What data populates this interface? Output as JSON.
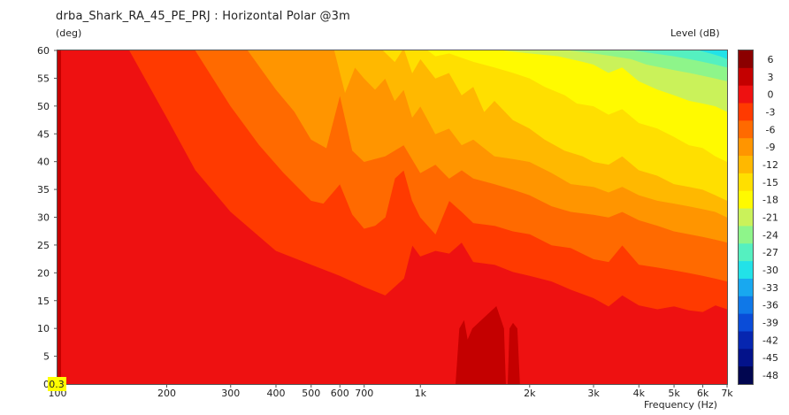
{
  "chart_data": {
    "type": "heatmap",
    "title": "drba_Shark_RA_45_PE_PRJ : Horizontal Polar @3m",
    "ylabel": "(deg)",
    "xlabel": "Frequency (Hz)",
    "colorbar_label": "Level (dB)",
    "x_scale": "log",
    "xlim": [
      100,
      7000
    ],
    "ylim": [
      0,
      60
    ],
    "x_ticks": [
      {
        "value": 100,
        "label": "100"
      },
      {
        "value": 200,
        "label": "200"
      },
      {
        "value": 300,
        "label": "300"
      },
      {
        "value": 400,
        "label": "400"
      },
      {
        "value": 500,
        "label": "500"
      },
      {
        "value": 600,
        "label": "600"
      },
      {
        "value": 700,
        "label": "700"
      },
      {
        "value": 1000,
        "label": "1k"
      },
      {
        "value": 2000,
        "label": "2k"
      },
      {
        "value": 3000,
        "label": "3k"
      },
      {
        "value": 4000,
        "label": "4k"
      },
      {
        "value": 5000,
        "label": "5k"
      },
      {
        "value": 6000,
        "label": "6k"
      },
      {
        "value": 7000,
        "label": "7k"
      }
    ],
    "y_ticks": [
      "0",
      "5",
      "10",
      "15",
      "20",
      "25",
      "30",
      "35",
      "40",
      "45",
      "50",
      "55",
      "60"
    ],
    "cursor_readout": "0.3",
    "colorbar": [
      {
        "level": "6",
        "color": "#8b0000"
      },
      {
        "level": "3",
        "color": "#c40000"
      },
      {
        "level": "0",
        "color": "#ee1111"
      },
      {
        "level": "-3",
        "color": "#ff3a00"
      },
      {
        "level": "-6",
        "color": "#ff6a00"
      },
      {
        "level": "-9",
        "color": "#ff9500"
      },
      {
        "level": "-12",
        "color": "#ffb800"
      },
      {
        "level": "-15",
        "color": "#ffdf00"
      },
      {
        "level": "-18",
        "color": "#fffa00"
      },
      {
        "level": "-21",
        "color": "#caf25a"
      },
      {
        "level": "-24",
        "color": "#8ef58a"
      },
      {
        "level": "-27",
        "color": "#55f0c0"
      },
      {
        "level": "-30",
        "color": "#22e2e8"
      },
      {
        "level": "-33",
        "color": "#18a8f0"
      },
      {
        "level": "-36",
        "color": "#0f78e8"
      },
      {
        "level": "-39",
        "color": "#0a4cd8"
      },
      {
        "level": "-42",
        "color": "#0626b0"
      },
      {
        "level": "-45",
        "color": "#03128a"
      },
      {
        "level": "-48",
        "color": "#010650"
      }
    ],
    "contours": [
      {
        "level": "-3",
        "color": "#ff3a00",
        "boundary": [
          [
            158,
            60
          ],
          [
            200,
            48
          ],
          [
            240,
            38.5
          ],
          [
            300,
            31
          ],
          [
            400,
            24
          ],
          [
            500,
            21.5
          ],
          [
            600,
            19.5
          ],
          [
            700,
            17.5
          ],
          [
            800,
            16
          ],
          [
            900,
            19
          ],
          [
            950,
            25
          ],
          [
            1000,
            23
          ],
          [
            1100,
            24
          ],
          [
            1200,
            23.5
          ],
          [
            1300,
            25.5
          ],
          [
            1400,
            22
          ],
          [
            1600,
            21.5
          ],
          [
            1800,
            20.2
          ],
          [
            2000,
            19.5
          ],
          [
            2300,
            18.5
          ],
          [
            2600,
            17
          ],
          [
            3000,
            15.5
          ],
          [
            3300,
            14
          ],
          [
            3600,
            16
          ],
          [
            4000,
            14.2
          ],
          [
            4500,
            13.5
          ],
          [
            5000,
            14
          ],
          [
            5500,
            13.3
          ],
          [
            6000,
            13
          ],
          [
            6500,
            14.2
          ],
          [
            7000,
            13.5
          ]
        ]
      },
      {
        "level": "-6",
        "color": "#ff6a00",
        "boundary": [
          [
            240,
            60
          ],
          [
            300,
            50
          ],
          [
            360,
            43
          ],
          [
            420,
            38
          ],
          [
            500,
            33
          ],
          [
            540,
            32.5
          ],
          [
            600,
            36
          ],
          [
            650,
            30.5
          ],
          [
            700,
            28
          ],
          [
            750,
            28.5
          ],
          [
            800,
            30
          ],
          [
            850,
            37
          ],
          [
            900,
            38.5
          ],
          [
            950,
            33
          ],
          [
            1000,
            30
          ],
          [
            1100,
            27
          ],
          [
            1200,
            33
          ],
          [
            1300,
            31
          ],
          [
            1400,
            29
          ],
          [
            1600,
            28.5
          ],
          [
            1800,
            27.5
          ],
          [
            2000,
            27
          ],
          [
            2300,
            25
          ],
          [
            2600,
            24.5
          ],
          [
            3000,
            22.5
          ],
          [
            3300,
            22
          ],
          [
            3600,
            25
          ],
          [
            4000,
            21.5
          ],
          [
            4500,
            21
          ],
          [
            5000,
            20.5
          ],
          [
            5500,
            20
          ],
          [
            6000,
            19.5
          ],
          [
            6500,
            19
          ],
          [
            7000,
            18.5
          ]
        ]
      },
      {
        "level": "-9",
        "color": "#ff9500",
        "boundary": [
          [
            335,
            60
          ],
          [
            400,
            53
          ],
          [
            450,
            49
          ],
          [
            500,
            44
          ],
          [
            550,
            42.5
          ],
          [
            600,
            52
          ],
          [
            650,
            42
          ],
          [
            700,
            40
          ],
          [
            800,
            41
          ],
          [
            900,
            43
          ],
          [
            1000,
            38
          ],
          [
            1100,
            39.5
          ],
          [
            1200,
            37
          ],
          [
            1300,
            38.5
          ],
          [
            1400,
            37
          ],
          [
            1600,
            36
          ],
          [
            1800,
            35
          ],
          [
            2000,
            34
          ],
          [
            2300,
            32
          ],
          [
            2600,
            31
          ],
          [
            3000,
            30.5
          ],
          [
            3300,
            30
          ],
          [
            3600,
            31
          ],
          [
            4000,
            29.5
          ],
          [
            4500,
            28.5
          ],
          [
            5000,
            27.5
          ],
          [
            5500,
            27
          ],
          [
            6000,
            26.5
          ],
          [
            6500,
            26
          ],
          [
            7000,
            25.5
          ]
        ]
      },
      {
        "level": "-12",
        "color": "#ffb800",
        "boundary": [
          [
            580,
            60
          ],
          [
            620,
            52.5
          ],
          [
            660,
            57
          ],
          [
            700,
            55
          ],
          [
            750,
            53
          ],
          [
            800,
            55
          ],
          [
            850,
            51
          ],
          [
            900,
            53
          ],
          [
            950,
            48
          ],
          [
            1000,
            50
          ],
          [
            1100,
            45
          ],
          [
            1200,
            46
          ],
          [
            1300,
            43
          ],
          [
            1400,
            44
          ],
          [
            1600,
            41
          ],
          [
            1800,
            40.5
          ],
          [
            2000,
            40
          ],
          [
            2300,
            38
          ],
          [
            2600,
            36
          ],
          [
            3000,
            35.5
          ],
          [
            3300,
            34.5
          ],
          [
            3600,
            35.5
          ],
          [
            4000,
            34
          ],
          [
            4500,
            33
          ],
          [
            5000,
            32.5
          ],
          [
            5500,
            32
          ],
          [
            6000,
            31.5
          ],
          [
            6500,
            31
          ],
          [
            7000,
            30
          ]
        ]
      },
      {
        "level": "-15",
        "color": "#ffdf00",
        "boundary": [
          [
            790,
            60
          ],
          [
            850,
            58
          ],
          [
            900,
            60.5
          ],
          [
            950,
            56
          ],
          [
            1000,
            58.5
          ],
          [
            1100,
            55
          ],
          [
            1200,
            56
          ],
          [
            1300,
            52
          ],
          [
            1400,
            53.5
          ],
          [
            1500,
            49
          ],
          [
            1600,
            51
          ],
          [
            1800,
            47.5
          ],
          [
            2000,
            46
          ],
          [
            2200,
            44
          ],
          [
            2500,
            42
          ],
          [
            2800,
            41
          ],
          [
            3000,
            40
          ],
          [
            3300,
            39.5
          ],
          [
            3600,
            41
          ],
          [
            4000,
            38.5
          ],
          [
            4500,
            37.5
          ],
          [
            5000,
            36
          ],
          [
            5500,
            35.5
          ],
          [
            6000,
            35
          ],
          [
            6500,
            34
          ],
          [
            7000,
            33
          ]
        ]
      },
      {
        "level": "-18",
        "color": "#fffa00",
        "boundary": [
          [
            1050,
            60
          ],
          [
            1100,
            59
          ],
          [
            1200,
            59.5
          ],
          [
            1400,
            58
          ],
          [
            1600,
            57
          ],
          [
            1800,
            56
          ],
          [
            2000,
            55
          ],
          [
            2200,
            53.5
          ],
          [
            2500,
            52
          ],
          [
            2700,
            50.5
          ],
          [
            3000,
            50
          ],
          [
            3300,
            48.5
          ],
          [
            3600,
            49.5
          ],
          [
            4000,
            47
          ],
          [
            4500,
            46
          ],
          [
            5000,
            44.5
          ],
          [
            5500,
            43
          ],
          [
            6000,
            42.5
          ],
          [
            6500,
            41
          ],
          [
            7000,
            40
          ]
        ]
      },
      {
        "level": "-21",
        "color": "#caf25a",
        "boundary": [
          [
            1700,
            60
          ],
          [
            2000,
            59.5
          ],
          [
            2400,
            59
          ],
          [
            2800,
            58
          ],
          [
            3000,
            57.5
          ],
          [
            3300,
            56
          ],
          [
            3600,
            57
          ],
          [
            4000,
            54.5
          ],
          [
            4500,
            53
          ],
          [
            5000,
            52
          ],
          [
            5500,
            51
          ],
          [
            6000,
            50.5
          ],
          [
            6500,
            50
          ],
          [
            7000,
            49
          ]
        ]
      },
      {
        "level": "-24",
        "color": "#8ef58a",
        "boundary": [
          [
            2600,
            60
          ],
          [
            3000,
            59.5
          ],
          [
            3400,
            59
          ],
          [
            3800,
            58.5
          ],
          [
            4200,
            57.5
          ],
          [
            4600,
            57
          ],
          [
            5000,
            56.5
          ],
          [
            5500,
            56
          ],
          [
            6000,
            55.5
          ],
          [
            6500,
            55
          ],
          [
            7000,
            54.5
          ]
        ]
      },
      {
        "level": "-27",
        "color": "#55f0c0",
        "boundary": [
          [
            3900,
            60
          ],
          [
            4400,
            59.5
          ],
          [
            5000,
            59
          ],
          [
            5500,
            58.5
          ],
          [
            6000,
            58
          ],
          [
            6500,
            57.5
          ],
          [
            7000,
            57
          ]
        ]
      },
      {
        "level": "-30",
        "color": "#22e2e8",
        "boundary": [
          [
            5900,
            60
          ],
          [
            6300,
            59.5
          ],
          [
            6700,
            59
          ],
          [
            7000,
            58.5
          ]
        ]
      }
    ],
    "peaks": [
      {
        "level": "3",
        "color": "#c40000",
        "polygon": [
          [
            1250,
            0
          ],
          [
            1280,
            10
          ],
          [
            1320,
            11.5
          ],
          [
            1350,
            8
          ],
          [
            1390,
            10
          ],
          [
            1500,
            12
          ],
          [
            1620,
            14
          ],
          [
            1700,
            10
          ],
          [
            1720,
            0
          ]
        ]
      },
      {
        "level": "3",
        "color": "#c40000",
        "polygon": [
          [
            1740,
            0
          ],
          [
            1760,
            10
          ],
          [
            1800,
            11
          ],
          [
            1850,
            10
          ],
          [
            1880,
            0
          ]
        ]
      }
    ]
  }
}
